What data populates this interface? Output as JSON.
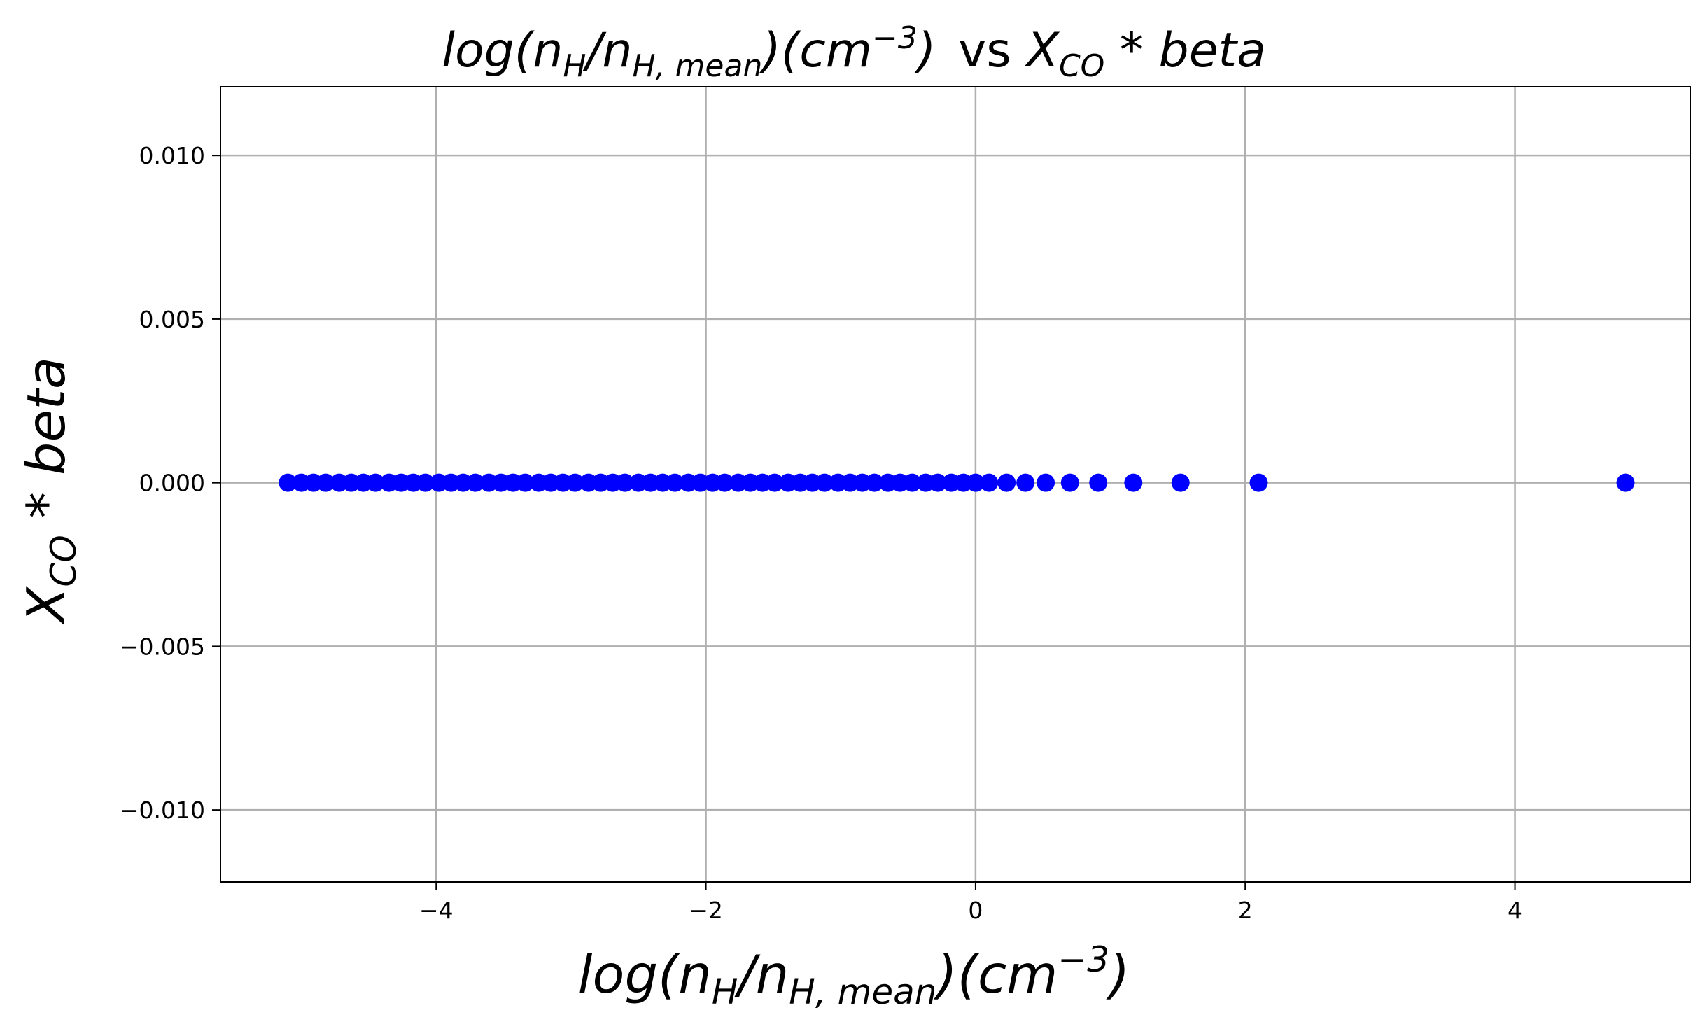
{
  "chart_data": {
    "type": "scatter",
    "title": {
      "left_math": "log(n_H/n_H,mean)(cm^-3)",
      "connector": "vs",
      "right_math": "X_CO * beta"
    },
    "xlabel": "log(n_H/n_H,mean)(cm^-3)",
    "ylabel": "X_CO * beta",
    "xlim": [
      -5.6,
      5.3
    ],
    "ylim": [
      -0.0122,
      0.0121
    ],
    "x_ticks": [
      -4,
      -2,
      0,
      2,
      4
    ],
    "x_tick_labels": [
      "−4",
      "−2",
      "0",
      "2",
      "4"
    ],
    "y_ticks": [
      -0.01,
      -0.005,
      0.0,
      0.005,
      0.01
    ],
    "y_tick_labels": [
      "−0.010",
      "−0.005",
      "0.000",
      "0.005",
      "0.010"
    ],
    "grid": true,
    "colors": {
      "points": "#0000ff",
      "grid": "#b0b0b0",
      "axes": "#000000"
    },
    "series": [
      {
        "x": [
          -5.1,
          -5.0,
          -4.91,
          -4.82,
          -4.72,
          -4.63,
          -4.54,
          -4.45,
          -4.35,
          -4.26,
          -4.17,
          -4.08,
          -3.98,
          -3.89,
          -3.8,
          -3.71,
          -3.61,
          -3.52,
          -3.43,
          -3.34,
          -3.24,
          -3.15,
          -3.06,
          -2.97,
          -2.87,
          -2.78,
          -2.69,
          -2.6,
          -2.5,
          -2.41,
          -2.32,
          -2.23,
          -2.13,
          -2.04,
          -1.95,
          -1.86,
          -1.76,
          -1.67,
          -1.58,
          -1.49,
          -1.39,
          -1.3,
          -1.21,
          -1.12,
          -1.02,
          -0.93,
          -0.84,
          -0.75,
          -0.65,
          -0.56,
          -0.47,
          -0.37,
          -0.28,
          -0.18,
          -0.09,
          0.0,
          0.1,
          0.23,
          0.37,
          0.52,
          0.7,
          0.91,
          1.17,
          1.52,
          2.1,
          4.82
        ],
        "y": [
          0,
          0,
          0,
          0,
          0,
          0,
          0,
          0,
          0,
          0,
          0,
          0,
          0,
          0,
          0,
          0,
          0,
          0,
          0,
          0,
          0,
          0,
          0,
          0,
          0,
          0,
          0,
          0,
          0,
          0,
          0,
          0,
          0,
          0,
          0,
          0,
          0,
          0,
          0,
          0,
          0,
          0,
          0,
          0,
          0,
          0,
          0,
          0,
          0,
          0,
          0,
          0,
          0,
          0,
          0,
          0,
          0,
          0,
          0,
          0,
          0,
          0,
          0,
          0,
          0,
          0
        ]
      }
    ]
  }
}
